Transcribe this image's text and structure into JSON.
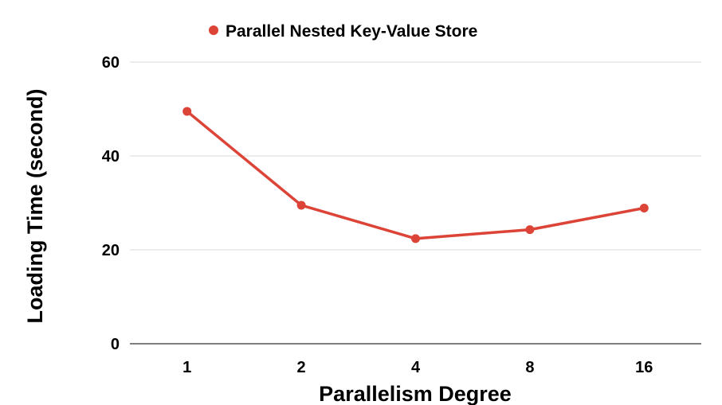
{
  "chart_data": {
    "type": "line",
    "title": "",
    "xlabel": "Parallelism Degree",
    "ylabel": "Loading Time (second)",
    "categories": [
      "1",
      "2",
      "4",
      "8",
      "16"
    ],
    "series": [
      {
        "name": "Parallel Nested Key-Value Store",
        "values": [
          49.5,
          29.5,
          22.4,
          24.3,
          28.9
        ],
        "color": "#db4437"
      }
    ],
    "ylim": [
      0,
      60
    ],
    "yticks": [
      "0",
      "20",
      "40",
      "60"
    ],
    "grid": true,
    "legend_position": "top-center"
  }
}
